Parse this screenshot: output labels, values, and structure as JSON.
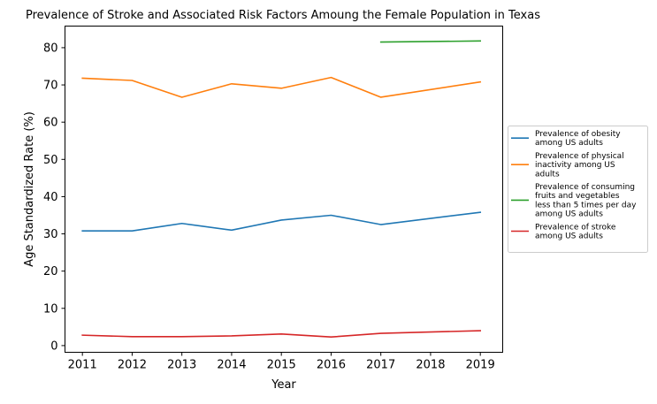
{
  "chart_data": {
    "type": "line",
    "title": "Prevalence of Stroke and Associated Risk Factors Amoung the Female Population in Texas",
    "xlabel": "Year",
    "ylabel": "Age Standardized Rate (%)",
    "xlim": [
      2010.65,
      2019.45
    ],
    "ylim": [
      -1.8,
      85.8
    ],
    "x_ticks": [
      2011,
      2012,
      2013,
      2014,
      2015,
      2016,
      2017,
      2018,
      2019
    ],
    "y_ticks": [
      0,
      10,
      20,
      30,
      40,
      50,
      60,
      70,
      80
    ],
    "grid": false,
    "legend_position": "outside-right",
    "series": [
      {
        "name_lines": [
          "Prevalence of obesity",
          "among US adults"
        ],
        "color": "#1f77b4",
        "points": [
          [
            2011,
            30.8
          ],
          [
            2012,
            30.8
          ],
          [
            2013,
            32.8
          ],
          [
            2014,
            31.0
          ],
          [
            2015,
            33.7
          ],
          [
            2016,
            35.0
          ],
          [
            2017,
            32.5
          ],
          [
            2019,
            35.8
          ]
        ]
      },
      {
        "name_lines": [
          "Prevalence of physical",
          "inactivity among US",
          "adults"
        ],
        "color": "#ff7f0e",
        "points": [
          [
            2011,
            71.8
          ],
          [
            2012,
            71.2
          ],
          [
            2013,
            66.7
          ],
          [
            2014,
            70.3
          ],
          [
            2015,
            69.1
          ],
          [
            2016,
            72.0
          ],
          [
            2017,
            66.7
          ],
          [
            2019,
            70.8
          ]
        ]
      },
      {
        "name_lines": [
          "Prevalence of consuming",
          "fruits and vegetables",
          "less than 5 times per day",
          "among US adults"
        ],
        "color": "#2ca02c",
        "points": [
          [
            2017,
            81.5
          ],
          [
            2019,
            81.8
          ]
        ]
      },
      {
        "name_lines": [
          "Prevalence of stroke",
          "among US adults"
        ],
        "color": "#d62728",
        "points": [
          [
            2011,
            2.8
          ],
          [
            2012,
            2.4
          ],
          [
            2013,
            2.4
          ],
          [
            2014,
            2.6
          ],
          [
            2015,
            3.1
          ],
          [
            2016,
            2.3
          ],
          [
            2017,
            3.3
          ],
          [
            2019,
            4.0
          ]
        ]
      }
    ]
  }
}
